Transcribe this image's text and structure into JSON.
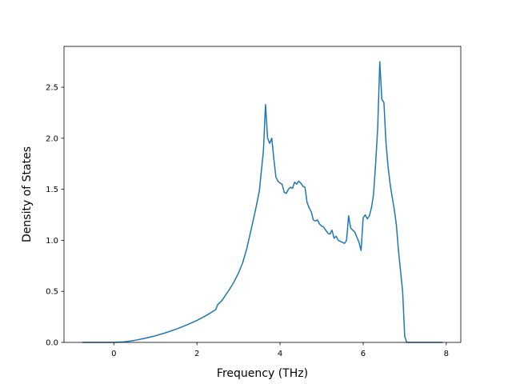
{
  "chart_data": {
    "type": "line",
    "title": "",
    "xlabel": "Frequency (THz)",
    "ylabel": "Density of States",
    "xlim": [
      -1.2,
      8.35
    ],
    "ylim": [
      0,
      2.9
    ],
    "xticks": [
      0,
      2,
      4,
      6,
      8
    ],
    "yticks": [
      0.0,
      0.5,
      1.0,
      1.5,
      2.0,
      2.5
    ],
    "xtick_labels": [
      "0",
      "2",
      "4",
      "6",
      "8"
    ],
    "ytick_labels": [
      "0.0",
      "0.5",
      "1.0",
      "1.5",
      "2.0",
      "2.5"
    ],
    "grid": false,
    "color": "#1f77b4",
    "series": [
      {
        "x": [
          -0.75,
          0.0,
          0.25,
          0.5,
          0.75,
          1.0,
          1.25,
          1.5,
          1.75,
          2.0,
          2.25,
          2.45,
          2.5,
          2.6,
          2.7,
          2.8,
          2.9,
          3.0,
          3.1,
          3.2,
          3.3,
          3.4,
          3.5,
          3.6,
          3.65,
          3.7,
          3.75,
          3.8,
          3.85,
          3.9,
          3.95,
          4.0,
          4.05,
          4.1,
          4.15,
          4.2,
          4.25,
          4.3,
          4.35,
          4.4,
          4.45,
          4.5,
          4.55,
          4.6,
          4.65,
          4.7,
          4.75,
          4.8,
          4.85,
          4.9,
          4.95,
          5.0,
          5.05,
          5.1,
          5.15,
          5.2,
          5.25,
          5.3,
          5.35,
          5.4,
          5.45,
          5.5,
          5.55,
          5.6,
          5.65,
          5.7,
          5.75,
          5.8,
          5.85,
          5.9,
          5.95,
          6.0,
          6.05,
          6.1,
          6.15,
          6.2,
          6.25,
          6.3,
          6.35,
          6.4,
          6.45,
          6.5,
          6.55,
          6.6,
          6.65,
          6.7,
          6.75,
          6.8,
          6.85,
          6.9,
          6.95,
          7.0,
          7.05,
          7.1,
          7.15,
          7.2,
          7.3,
          7.5,
          7.9
        ],
        "y": [
          0.0,
          0.0,
          0.005,
          0.02,
          0.04,
          0.065,
          0.095,
          0.13,
          0.17,
          0.215,
          0.27,
          0.32,
          0.37,
          0.41,
          0.47,
          0.53,
          0.6,
          0.68,
          0.78,
          0.92,
          1.1,
          1.28,
          1.48,
          1.88,
          2.33,
          2.0,
          1.95,
          2.0,
          1.8,
          1.62,
          1.58,
          1.56,
          1.55,
          1.47,
          1.46,
          1.5,
          1.52,
          1.51,
          1.57,
          1.55,
          1.58,
          1.56,
          1.53,
          1.52,
          1.37,
          1.32,
          1.28,
          1.2,
          1.19,
          1.2,
          1.16,
          1.14,
          1.13,
          1.1,
          1.07,
          1.06,
          1.1,
          1.02,
          1.04,
          1.0,
          0.99,
          0.98,
          0.97,
          1.0,
          1.24,
          1.12,
          1.1,
          1.08,
          1.03,
          0.98,
          0.9,
          1.22,
          1.25,
          1.21,
          1.24,
          1.32,
          1.45,
          1.75,
          2.1,
          2.75,
          2.38,
          2.35,
          1.95,
          1.72,
          1.55,
          1.42,
          1.3,
          1.15,
          0.9,
          0.7,
          0.5,
          0.06,
          0.0,
          0.0,
          0.0,
          0.0,
          0.0,
          0.0,
          0.0
        ]
      }
    ]
  }
}
